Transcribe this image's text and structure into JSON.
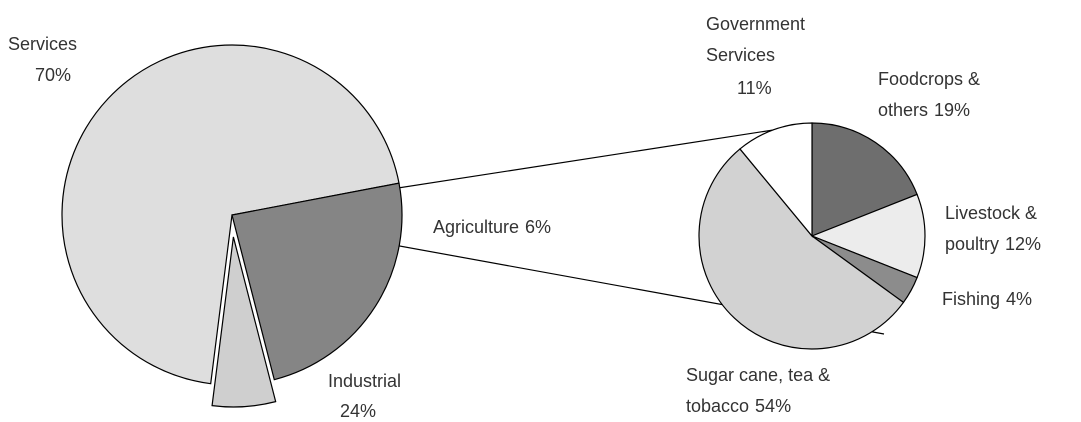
{
  "chart_data": [
    {
      "type": "pie",
      "categories": [
        "Services",
        "Industrial",
        "Agriculture"
      ],
      "values": [
        70,
        24,
        6
      ],
      "value_labels": [
        "70%",
        "24%",
        "6%"
      ],
      "colors": [
        "#dedede",
        "#858585",
        "#cfcfcf"
      ]
    },
    {
      "type": "pie",
      "categories": [
        "Foodcrops & others",
        "Livestock & poultry",
        "Fishing",
        "Sugar cane, tea & tobacco",
        "Government Services"
      ],
      "values": [
        19,
        12,
        4,
        54,
        11
      ],
      "value_labels": [
        "19%",
        "12%",
        "4%",
        "54%",
        "11%"
      ],
      "colors": [
        "#6e6e6e",
        "#ececec",
        "#8c8c8c",
        "#d2d2d2",
        "#ffffff"
      ]
    }
  ]
}
